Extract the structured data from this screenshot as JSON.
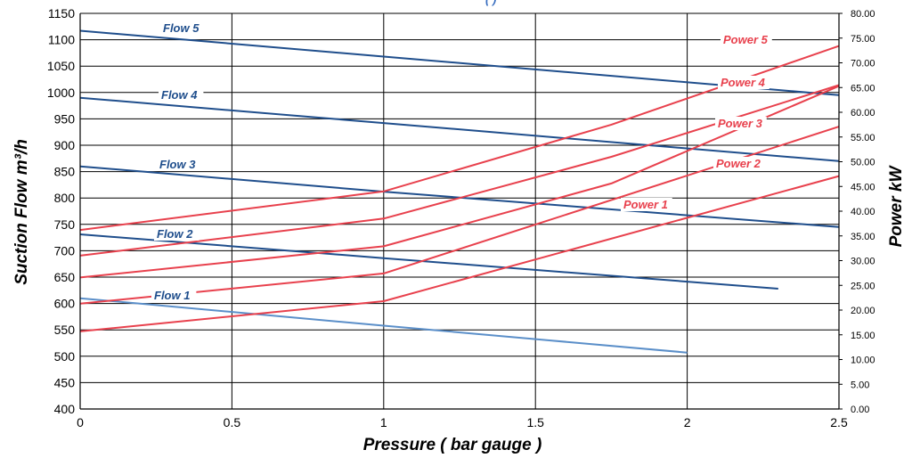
{
  "chart_data": {
    "type": "line",
    "title": "",
    "title_fragment": "(                  )",
    "xlabel": "Pressure ( bar gauge )",
    "ylabel_left": "Suction Flow m³/h",
    "ylabel_right": "Power kW",
    "xlim": [
      0,
      2.5
    ],
    "ylim_left": [
      400,
      1150
    ],
    "ylim_right": [
      0,
      80
    ],
    "x_ticks": [
      "0",
      "0.5",
      "1",
      "1.5",
      "2",
      "2.5"
    ],
    "y_left_ticks": [
      "400",
      "450",
      "500",
      "550",
      "600",
      "650",
      "700",
      "750",
      "800",
      "850",
      "900",
      "950",
      "1000",
      "1050",
      "1100",
      "1150"
    ],
    "y_right_ticks": [
      "0.00",
      "5.00",
      "10.00",
      "15.00",
      "20.00",
      "25.00",
      "30.00",
      "35.00",
      "40.00",
      "45.00",
      "50.00",
      "55.00",
      "60.00",
      "65.00",
      "70.00",
      "75.00",
      "80.00"
    ],
    "grid": true,
    "series": [
      {
        "name": "Flow 1",
        "axis": "left",
        "color": "#5b8fc9",
        "x": [
          0,
          1,
          2
        ],
        "y": [
          610,
          558,
          507
        ]
      },
      {
        "name": "Flow 2",
        "axis": "left",
        "color": "#1f4e8c",
        "x": [
          0,
          1,
          2.3
        ],
        "y": [
          731,
          686,
          628
        ]
      },
      {
        "name": "Flow 3",
        "axis": "left",
        "color": "#1f4e8c",
        "x": [
          0,
          1,
          2.5
        ],
        "y": [
          860,
          812,
          745
        ]
      },
      {
        "name": "Flow 4",
        "axis": "left",
        "color": "#1f4e8c",
        "x": [
          0,
          1,
          2.5
        ],
        "y": [
          990,
          942,
          870
        ]
      },
      {
        "name": "Flow 5",
        "axis": "left",
        "color": "#1f4e8c",
        "x": [
          0,
          1,
          2.5
        ],
        "y": [
          1117,
          1068,
          995
        ]
      },
      {
        "name": "Power 1",
        "axis": "right",
        "color": "#e8414d",
        "x": [
          0,
          1,
          2.5
        ],
        "y": [
          15.7,
          21.8,
          47.1
        ]
      },
      {
        "name": "Power 2",
        "axis": "right",
        "color": "#e8414d",
        "x": [
          0,
          1,
          2.5
        ],
        "y": [
          21.3,
          27.4,
          57.1
        ]
      },
      {
        "name": "Power 3",
        "axis": "right",
        "color": "#e8414d",
        "x": [
          0,
          1,
          1.75,
          2.5
        ],
        "y": [
          26.6,
          32.9,
          45.6,
          65.3
        ]
      },
      {
        "name": "Power 4",
        "axis": "right",
        "color": "#e8414d",
        "x": [
          0,
          1,
          1.75,
          2.5
        ],
        "y": [
          31.0,
          38.5,
          51.0,
          65.5
        ]
      },
      {
        "name": "Power 5",
        "axis": "right",
        "color": "#e8414d",
        "x": [
          0,
          1,
          1.75,
          2.5
        ],
        "y": [
          36.2,
          44.0,
          57.5,
          73.4
        ]
      }
    ]
  }
}
